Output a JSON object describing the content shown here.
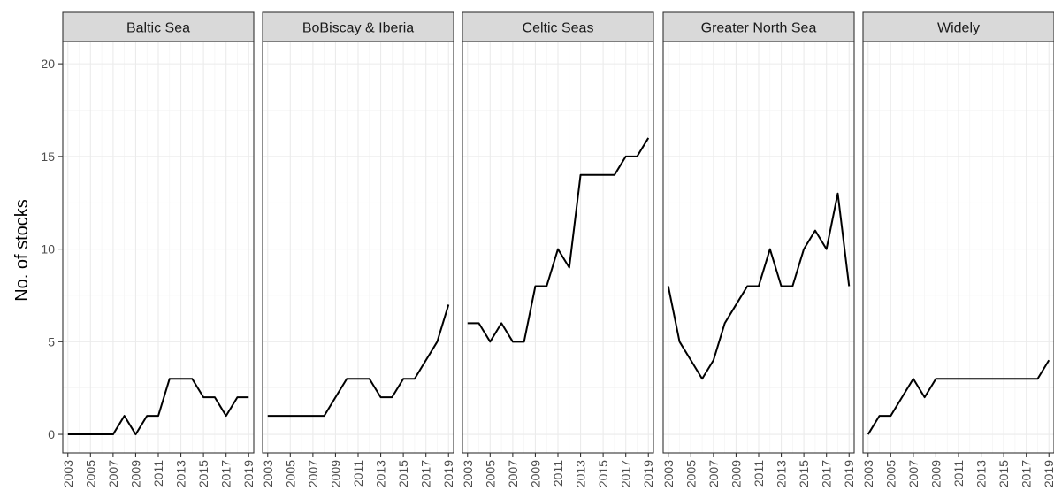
{
  "chart_data": {
    "type": "line",
    "ylabel": "No. of stocks",
    "xlabel": "",
    "ylim": [
      -1,
      21.2
    ],
    "yticks": [
      0,
      5,
      10,
      15,
      20
    ],
    "xlim": [
      2002.55,
      2019.45
    ],
    "xticks": [
      2003,
      2005,
      2007,
      2009,
      2011,
      2013,
      2015,
      2017,
      2019
    ],
    "x": [
      2003,
      2004,
      2005,
      2006,
      2007,
      2008,
      2009,
      2010,
      2011,
      2012,
      2013,
      2014,
      2015,
      2016,
      2017,
      2018,
      2019
    ],
    "grid": true,
    "line_color": "#000000",
    "panels": [
      {
        "name": "Baltic Sea",
        "values": [
          0,
          0,
          0,
          0,
          0,
          1,
          0,
          1,
          1,
          3,
          3,
          3,
          2,
          2,
          1,
          2,
          2
        ]
      },
      {
        "name": "BoBiscay & Iberia",
        "values": [
          1,
          1,
          1,
          1,
          1,
          1,
          2,
          3,
          3,
          3,
          2,
          2,
          3,
          3,
          4,
          5,
          7
        ]
      },
      {
        "name": "Celtic Seas",
        "values": [
          6,
          6,
          5,
          6,
          5,
          5,
          8,
          8,
          10,
          9,
          14,
          14,
          14,
          14,
          15,
          15,
          16
        ]
      },
      {
        "name": "Greater North Sea",
        "values": [
          8,
          5,
          4,
          3,
          4,
          6,
          7,
          8,
          8,
          10,
          8,
          8,
          10,
          11,
          10,
          13,
          8
        ]
      },
      {
        "name": "Widely",
        "values": [
          0,
          1,
          1,
          2,
          3,
          2,
          3,
          3,
          3,
          3,
          3,
          3,
          3,
          3,
          3,
          3,
          4
        ]
      }
    ]
  }
}
